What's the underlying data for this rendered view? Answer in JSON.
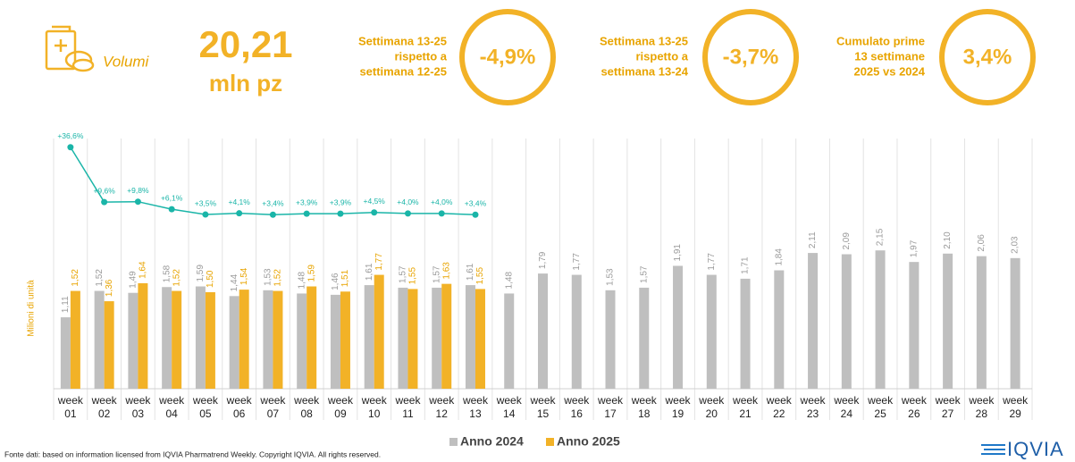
{
  "header": {
    "volume_label": "Volumi",
    "total": "20,21",
    "unit": "mln pz"
  },
  "kpis": [
    {
      "lines": [
        "Settimana 13-25",
        "rispetto a",
        "settimana 12-25"
      ],
      "value": "-4,9%"
    },
    {
      "lines": [
        "Settimana 13-25",
        "rispetto a",
        "settimana 13-24"
      ],
      "value": "-3,7%"
    },
    {
      "lines": [
        "Cumulato prime",
        "13 settimane",
        "2025 vs 2024"
      ],
      "value": "3,4%"
    }
  ],
  "chart_data": {
    "type": "bar",
    "y_label": "Milioni di unità",
    "categories": [
      [
        "week",
        "01"
      ],
      [
        "week",
        "02"
      ],
      [
        "week",
        "03"
      ],
      [
        "week",
        "04"
      ],
      [
        "week",
        "05"
      ],
      [
        "week",
        "06"
      ],
      [
        "week",
        "07"
      ],
      [
        "week",
        "08"
      ],
      [
        "week",
        "09"
      ],
      [
        "week",
        "10"
      ],
      [
        "week",
        "11"
      ],
      [
        "week",
        "12"
      ],
      [
        "week",
        "13"
      ],
      [
        "week",
        "14"
      ],
      [
        "week",
        "15"
      ],
      [
        "week",
        "16"
      ],
      [
        "week",
        "17"
      ],
      [
        "week",
        "18"
      ],
      [
        "week",
        "19"
      ],
      [
        "week",
        "20"
      ],
      [
        "week",
        "21"
      ],
      [
        "week",
        "22"
      ],
      [
        "week",
        "23"
      ],
      [
        "week",
        "24"
      ],
      [
        "week",
        "25"
      ],
      [
        "week",
        "26"
      ],
      [
        "week",
        "27"
      ],
      [
        "week",
        "28"
      ],
      [
        "week",
        "29"
      ]
    ],
    "ylim": [
      0,
      4
    ],
    "y2lim": [
      0,
      40
    ],
    "series": [
      {
        "name": "Anno 2024",
        "color": "#bfbfbf",
        "label_color": "#9a9a9a",
        "values": [
          1.11,
          1.52,
          1.49,
          1.58,
          1.59,
          1.44,
          1.53,
          1.48,
          1.46,
          1.61,
          1.57,
          1.57,
          1.61,
          1.48,
          1.79,
          1.77,
          1.53,
          1.57,
          1.91,
          1.77,
          1.71,
          1.84,
          2.11,
          2.09,
          2.15,
          1.97,
          2.1,
          2.06,
          2.03
        ],
        "value_labels": [
          "1,11",
          "1,52",
          "1,49",
          "1,58",
          "1,59",
          "1,44",
          "1,53",
          "1,48",
          "1,46",
          "1,61",
          "1,57",
          "1,57",
          "1,61",
          "1,48",
          "1,79",
          "1,77",
          "1,53",
          "1,57",
          "1,91",
          "1,77",
          "1,71",
          "1,84",
          "2,11",
          "2,09",
          "2,15",
          "1,97",
          "2,10",
          "2,06",
          "2,03"
        ]
      },
      {
        "name": "Anno 2025",
        "color": "#f2b227",
        "label_color": "#e8a400",
        "values": [
          1.52,
          1.36,
          1.64,
          1.52,
          1.5,
          1.54,
          1.52,
          1.59,
          1.51,
          1.77,
          1.55,
          1.63,
          1.55,
          null,
          null,
          null,
          null,
          null,
          null,
          null,
          null,
          null,
          null,
          null,
          null,
          null,
          null,
          null,
          null
        ],
        "value_labels": [
          "1,52",
          "1,36",
          "1,64",
          "1,52",
          "1,50",
          "1,54",
          "1,52",
          "1,59",
          "1,51",
          "1,77",
          "1,55",
          "1,63",
          "1,55",
          null,
          null,
          null,
          null,
          null,
          null,
          null,
          null,
          null,
          null,
          null,
          null,
          null,
          null,
          null,
          null
        ]
      },
      {
        "type": "line",
        "axis": "y2",
        "color": "#1ab5a8",
        "label_color": "#1ab5a8",
        "values": [
          36.6,
          9.6,
          9.8,
          6.1,
          3.5,
          4.1,
          3.4,
          3.9,
          3.9,
          4.5,
          4.0,
          4.0,
          3.4,
          null,
          null,
          null,
          null,
          null,
          null,
          null,
          null,
          null,
          null,
          null,
          null,
          null,
          null,
          null,
          null
        ],
        "value_labels": [
          "+36,6%",
          "+9,6%",
          "+9,8%",
          "+6,1%",
          "+3,5%",
          "+4,1%",
          "+3,4%",
          "+3,9%",
          "+3,9%",
          "+4,5%",
          "+4,0%",
          "+4,0%",
          "+3,4%",
          null,
          null,
          null,
          null,
          null,
          null,
          null,
          null,
          null,
          null,
          null,
          null,
          null,
          null,
          null,
          null
        ]
      }
    ]
  },
  "footer": {
    "source": "Fonte dati: based on information licensed from IQVIA Pharmatrend Weekly. Copyright IQVIA. All rights reserved.",
    "logo": "IQVIA"
  }
}
